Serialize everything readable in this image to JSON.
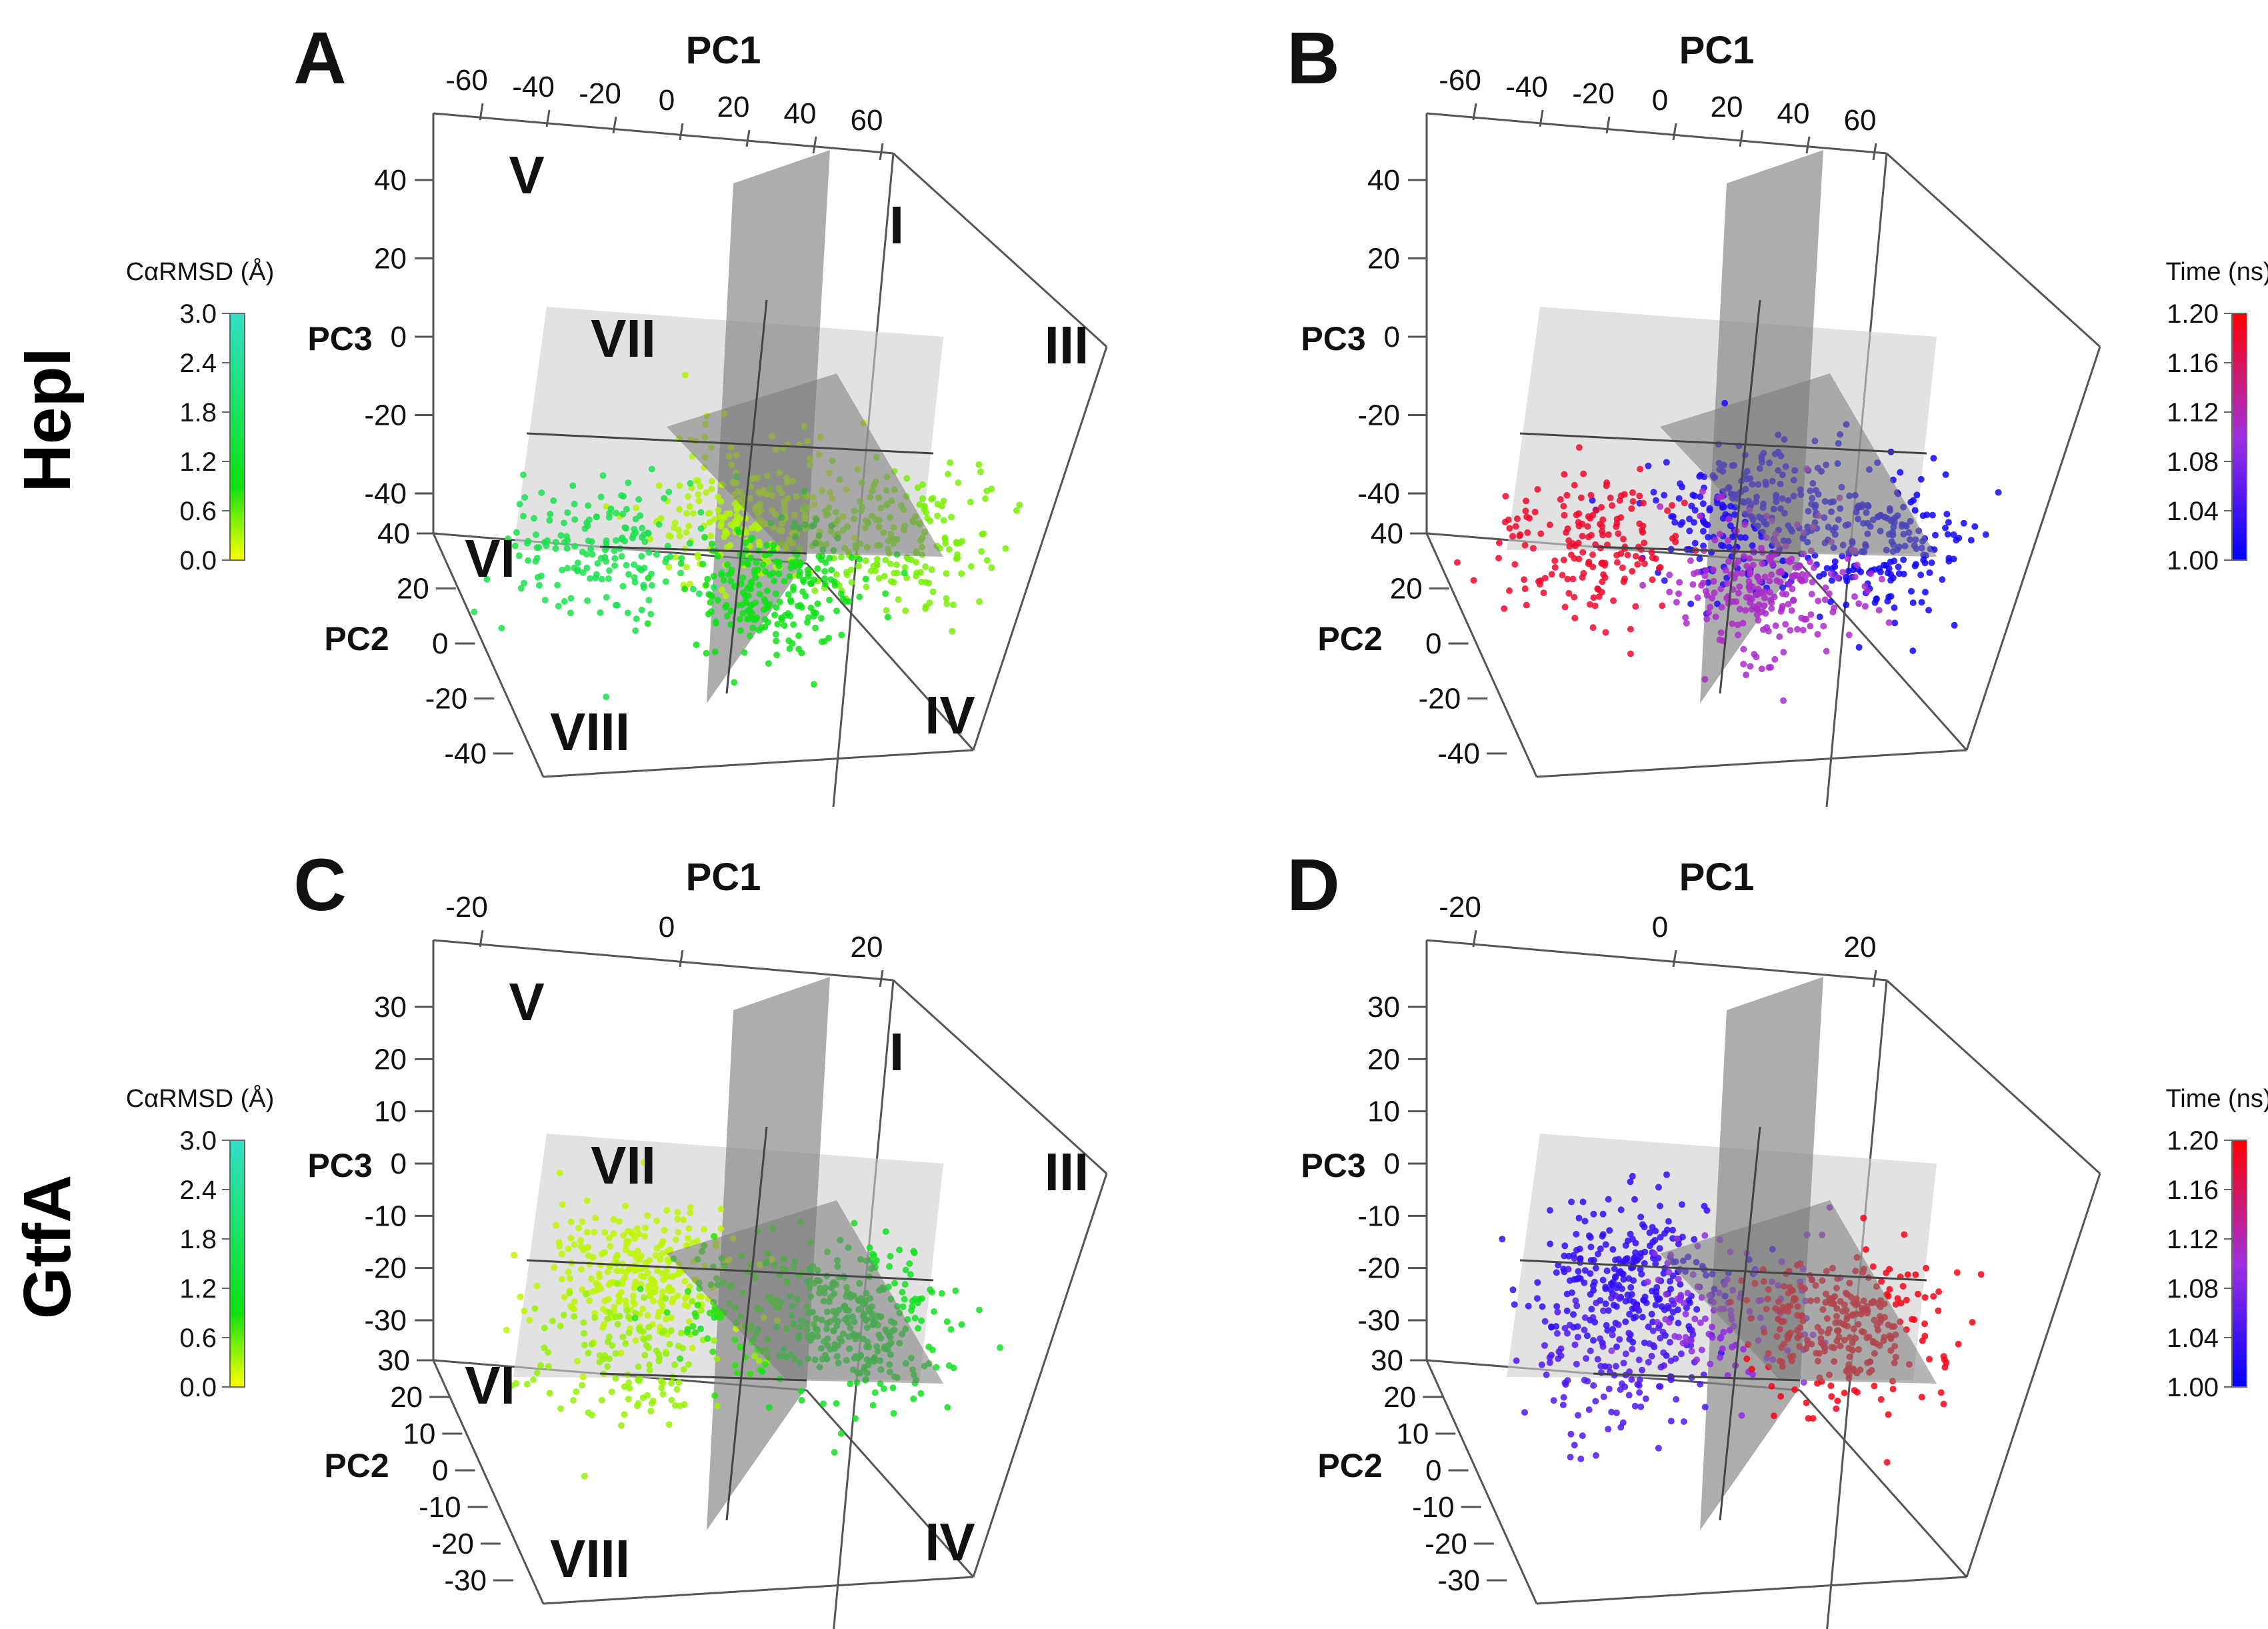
{
  "figure": {
    "row_labels": [
      "HepI",
      "GtfA"
    ],
    "colors": {
      "rmsd_low": "#ffff00",
      "rmsd_mid": "#10e010",
      "rmsd_high": "#30e0c8",
      "time_low": "#0000ff",
      "time_mid": "#a030e0",
      "time_high": "#ff0000"
    }
  },
  "chart_data": [
    {
      "panel": "A",
      "protein": "HepI",
      "type": "scatter",
      "xlabel": "PC1",
      "ylabel": "PC2",
      "zlabel": "PC3",
      "x_ticks": [
        "-60",
        "-40",
        "-20",
        "0",
        "20",
        "40",
        "60"
      ],
      "y_ticks": [
        "40",
        "20",
        "0",
        "-20",
        "-40"
      ],
      "z_ticks": [
        "40",
        "20",
        "0",
        "-20",
        "-40"
      ],
      "regions": [
        "I",
        "III",
        "IV",
        "V",
        "VI",
        "VII",
        "VIII"
      ],
      "colorbar": {
        "title": "CαRMSD (Å)",
        "ticks": [
          "3.0",
          "2.4",
          "1.8",
          "1.2",
          "0.6",
          "0.0"
        ],
        "range": [
          0.0,
          3.0
        ]
      },
      "clusters": [
        {
          "pc1": 0,
          "pc3": -18,
          "count": 230,
          "rmsd": 0.3
        },
        {
          "pc1": 30,
          "pc3": -25,
          "count": 200,
          "rmsd": 0.5
        },
        {
          "pc1": -30,
          "pc3": -28,
          "count": 170,
          "rmsd": 1.6
        },
        {
          "pc1": 5,
          "pc3": -38,
          "count": 230,
          "rmsd": 1.0
        }
      ]
    },
    {
      "panel": "B",
      "protein": "HepI",
      "type": "scatter",
      "xlabel": "PC1",
      "ylabel": "PC2",
      "zlabel": "PC3",
      "x_ticks": [
        "-60",
        "-40",
        "-20",
        "0",
        "20",
        "40",
        "60"
      ],
      "y_ticks": [
        "40",
        "20",
        "0",
        "-20",
        "-40"
      ],
      "z_ticks": [
        "40",
        "20",
        "0",
        "-20",
        "-40"
      ],
      "regions": [],
      "colorbar": {
        "title": "Time (ns)",
        "ticks": [
          "1.20",
          "1.16",
          "1.12",
          "1.08",
          "1.04",
          "1.00"
        ],
        "range": [
          1.0,
          1.2
        ]
      },
      "clusters": [
        {
          "pc1": 0,
          "pc3": -18,
          "count": 230,
          "time": 1.02
        },
        {
          "pc1": 30,
          "pc3": -25,
          "count": 200,
          "time": 1.01
        },
        {
          "pc1": -30,
          "pc3": -28,
          "count": 170,
          "time": 1.18
        },
        {
          "pc1": 5,
          "pc3": -38,
          "count": 230,
          "time": 1.11
        }
      ]
    },
    {
      "panel": "C",
      "protein": "GtfA",
      "type": "scatter",
      "xlabel": "PC1",
      "ylabel": "PC2",
      "zlabel": "PC3",
      "x_ticks": [
        "-20",
        "0",
        "20"
      ],
      "y_ticks": [
        "30",
        "20",
        "10",
        "0",
        "-10",
        "-20",
        "-30"
      ],
      "z_ticks": [
        "30",
        "20",
        "10",
        "0",
        "-10",
        "-20",
        "-30"
      ],
      "regions": [
        "I",
        "III",
        "IV",
        "V",
        "VI",
        "VII",
        "VIII"
      ],
      "colorbar": {
        "title": "CαRMSD (Å)",
        "ticks": [
          "3.0",
          "2.4",
          "1.8",
          "1.2",
          "0.6",
          "0.0"
        ],
        "range": [
          0.0,
          3.0
        ]
      },
      "clusters": [
        {
          "pc1": -22,
          "pc3": -2,
          "count": 260,
          "rmsd": 0.25
        },
        {
          "pc1": -24,
          "pc3": -24,
          "count": 130,
          "rmsd": 0.4
        },
        {
          "pc1": 0,
          "pc3": -10,
          "count": 110,
          "rmsd": 0.8
        },
        {
          "pc1": 22,
          "pc3": -15,
          "count": 280,
          "rmsd": 1.1
        }
      ]
    },
    {
      "panel": "D",
      "protein": "GtfA",
      "type": "scatter",
      "xlabel": "PC1",
      "ylabel": "PC2",
      "zlabel": "PC3",
      "x_ticks": [
        "-20",
        "0",
        "20"
      ],
      "y_ticks": [
        "30",
        "20",
        "10",
        "0",
        "-10",
        "-20",
        "-30"
      ],
      "z_ticks": [
        "30",
        "20",
        "10",
        "0",
        "-10",
        "-20",
        "-30"
      ],
      "regions": [],
      "colorbar": {
        "title": "Time (ns)",
        "ticks": [
          "1.20",
          "1.16",
          "1.12",
          "1.08",
          "1.04",
          "1.00"
        ],
        "range": [
          1.0,
          1.2
        ]
      },
      "clusters": [
        {
          "pc1": -22,
          "pc3": -2,
          "count": 260,
          "time": 1.03
        },
        {
          "pc1": -24,
          "pc3": -24,
          "count": 130,
          "time": 1.05
        },
        {
          "pc1": 0,
          "pc3": -10,
          "count": 110,
          "time": 1.09
        },
        {
          "pc1": 22,
          "pc3": -15,
          "count": 280,
          "time": 1.19
        }
      ]
    }
  ]
}
